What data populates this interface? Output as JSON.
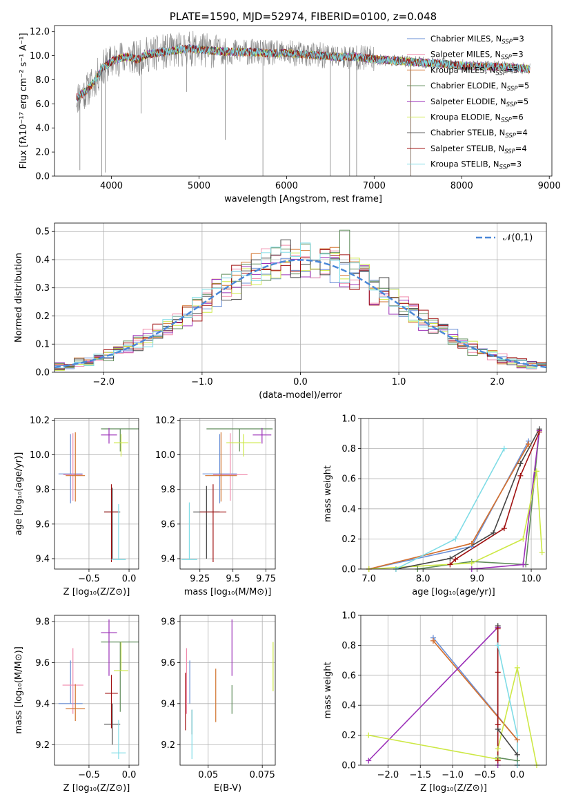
{
  "chart_data": [
    {
      "type": "line",
      "title": "PLATE=1590, MJD=52974, FIBERID=0100, z=0.048",
      "xlabel": "wavelength [Angstrom, rest frame]",
      "ylabel": "Flux [fλ10⁻¹⁷ erg cm⁻² s⁻¹ A⁻¹]",
      "xlim": [
        3350,
        9030
      ],
      "ylim": [
        0,
        12.5
      ],
      "xticks": [
        4000,
        5000,
        6000,
        7000,
        8000,
        9000
      ],
      "yticks": [
        0,
        2,
        4,
        6,
        8,
        10,
        12
      ],
      "legend_position": "right",
      "grid": false,
      "data_series": {
        "name": "",
        "color": "#808080",
        "x_range": [
          3600,
          8780
        ]
      },
      "series": [
        {
          "name": "Chabrier MILES",
          "nssp": "3",
          "color": "#6a8fd5"
        },
        {
          "name": "Salpeter MILES",
          "nssp": "3",
          "color": "#f08aac"
        },
        {
          "name": "Kroupa MILES",
          "nssp": "3",
          "color": "#d2732d"
        },
        {
          "name": "Chabrier ELODIE",
          "nssp": "5",
          "color": "#5f8c5a"
        },
        {
          "name": "Salpeter ELODIE",
          "nssp": "5",
          "color": "#9b30b8"
        },
        {
          "name": "Kroupa ELODIE",
          "nssp": "6",
          "color": "#cde845"
        },
        {
          "name": "Chabrier STELIB",
          "nssp": "4",
          "color": "#444444"
        },
        {
          "name": "Salpeter STELIB",
          "nssp": "4",
          "color": "#a01010"
        },
        {
          "name": "Kroupa STELIB",
          "nssp": "3",
          "color": "#7fdce6"
        }
      ],
      "continuum": {
        "x": [
          3600,
          3700,
          3800,
          3900,
          4000,
          4100,
          4200,
          4300,
          4400,
          4500,
          4600,
          4700,
          4800,
          4900,
          5000,
          5200,
          5400,
          5600,
          5800,
          6000,
          6200,
          6400,
          6600,
          6800,
          7000,
          7200,
          7400,
          7600,
          7800,
          8000,
          8200,
          8400,
          8600,
          8780
        ],
        "y": [
          6.5,
          7.0,
          7.8,
          9.0,
          9.5,
          9.8,
          9.9,
          9.7,
          10.1,
          10.2,
          10.3,
          10.4,
          10.5,
          10.6,
          10.5,
          10.4,
          10.3,
          10.3,
          10.2,
          10.2,
          10.1,
          10.0,
          9.9,
          9.9,
          9.7,
          9.6,
          9.5,
          9.4,
          9.3,
          9.2,
          9.1,
          9.1,
          9.0,
          8.9
        ]
      },
      "drops": [
        {
          "x": 3640,
          "y": 0.5
        },
        {
          "x": 3890,
          "y": 0
        },
        {
          "x": 3930,
          "y": 0.3
        },
        {
          "x": 4340,
          "y": 5.2
        },
        {
          "x": 4860,
          "y": 7.0
        },
        {
          "x": 5300,
          "y": 3.0
        },
        {
          "x": 5730,
          "y": 0
        },
        {
          "x": 6500,
          "y": 0
        },
        {
          "x": 6720,
          "y": 0
        },
        {
          "x": 6800,
          "y": 0
        },
        {
          "x": 7420,
          "y": 0
        }
      ]
    },
    {
      "type": "bar",
      "xlabel": "(data-model)/error",
      "ylabel": "Normed distribution",
      "xlim": [
        -2.5,
        2.5
      ],
      "ylim": [
        0,
        0.53
      ],
      "xticks": [
        -2,
        -1,
        0,
        1,
        2
      ],
      "yticks": [
        0.0,
        0.1,
        0.2,
        0.3,
        0.4,
        0.5
      ],
      "grid": true,
      "histogram_bin_width": 0.1,
      "histogram_bin_range": [
        -2.5,
        2.5
      ],
      "legend_entries": [
        "𝒩(0,1)"
      ],
      "reference_curve": {
        "name": "𝒩(0,1)",
        "type": "normal",
        "mean": 0,
        "sd": 1,
        "color": "#4a88d8"
      },
      "series_colors": [
        "#6a8fd5",
        "#f08aac",
        "#d2732d",
        "#5f8c5a",
        "#9b30b8",
        "#cde845",
        "#444444",
        "#a01010",
        "#7fdce6"
      ],
      "noted_peaks": [
        {
          "x": -0.2,
          "y": 0.47
        },
        {
          "x": 0.2,
          "y": 0.465
        },
        {
          "x": 0.45,
          "y": 0.505
        }
      ]
    },
    {
      "type": "scatter",
      "xlabel": "Z [log₁₀(Z/Z⊙)]",
      "ylabel": "age  [log₁₀(age/yr)]",
      "xlim": [
        -0.93,
        0.12
      ],
      "ylim": [
        9.34,
        10.21
      ],
      "xticks": [
        -0.5,
        0.0
      ],
      "yticks": [
        9.4,
        9.6,
        9.8,
        10.0,
        10.2
      ],
      "grid": true,
      "points": [
        {
          "x": -0.73,
          "y": 9.89,
          "xerr": 0.15,
          "yerr": [
            0.17,
            0.23
          ],
          "color": "#6a8fd5"
        },
        {
          "x": -0.7,
          "y": 9.885,
          "xerr": 0.12,
          "yerr": [
            0.15,
            0.24
          ],
          "color": "#f08aac"
        },
        {
          "x": -0.67,
          "y": 9.88,
          "xerr": 0.12,
          "yerr": [
            0.15,
            0.25
          ],
          "color": "#d2732d"
        },
        {
          "x": -0.11,
          "y": 10.15,
          "xerr": 0.24,
          "yerr": [
            0.13,
            0.0
          ],
          "color": "#5f8c5a"
        },
        {
          "x": -0.25,
          "y": 10.115,
          "xerr": 0.1,
          "yerr": [
            0.05,
            0.04
          ],
          "color": "#9b30b8"
        },
        {
          "x": -0.1,
          "y": 10.07,
          "xerr": 0.09,
          "yerr": [
            0.08,
            0.05
          ],
          "color": "#cde845"
        },
        {
          "x": -0.21,
          "y": 9.67,
          "xerr": 0.1,
          "yerr": [
            0.27,
            0.14
          ],
          "color": "#444444"
        },
        {
          "x": -0.22,
          "y": 9.67,
          "xerr": 0.09,
          "yerr": [
            0.29,
            0.16
          ],
          "color": "#a01010"
        },
        {
          "x": -0.13,
          "y": 9.395,
          "xerr": 0.09,
          "yerr": [
            0.0,
            0.32
          ],
          "color": "#7fdce6"
        }
      ]
    },
    {
      "type": "scatter",
      "xlabel": "mass [log₁₀(M/M⊙)]",
      "ylabel": "",
      "xlim": [
        9.1,
        9.82
      ],
      "ylim": [
        9.34,
        10.21
      ],
      "xticks": [
        9.25,
        9.5,
        9.75
      ],
      "yticks": [
        9.4,
        9.6,
        9.8,
        10.0,
        10.2
      ],
      "grid": true,
      "points": [
        {
          "x": 9.4,
          "y": 9.89,
          "xerr": 0.13,
          "yerr": [
            0.17,
            0.23
          ],
          "color": "#6a8fd5"
        },
        {
          "x": 9.48,
          "y": 9.885,
          "xerr": 0.13,
          "yerr": [
            0.15,
            0.24
          ],
          "color": "#f08aac"
        },
        {
          "x": 9.41,
          "y": 9.88,
          "xerr": 0.12,
          "yerr": [
            0.15,
            0.25
          ],
          "color": "#d2732d"
        },
        {
          "x": 9.55,
          "y": 10.15,
          "xerr": 0.25,
          "yerr": [
            0.13,
            0.0
          ],
          "color": "#5f8c5a"
        },
        {
          "x": 9.72,
          "y": 10.115,
          "xerr": 0.07,
          "yerr": [
            0.05,
            0.04
          ],
          "color": "#9b30b8"
        },
        {
          "x": 9.58,
          "y": 10.07,
          "xerr": 0.13,
          "yerr": [
            0.08,
            0.05
          ],
          "color": "#cde845"
        },
        {
          "x": 9.3,
          "y": 9.67,
          "xerr": 0.1,
          "yerr": [
            0.27,
            0.15
          ],
          "color": "#444444"
        },
        {
          "x": 9.35,
          "y": 9.67,
          "xerr": 0.1,
          "yerr": [
            0.29,
            0.16
          ],
          "color": "#a01010"
        },
        {
          "x": 9.17,
          "y": 9.395,
          "xerr": 0.06,
          "yerr": [
            0.0,
            0.33
          ],
          "color": "#7fdce6"
        }
      ]
    },
    {
      "type": "line",
      "xlabel": "age  [log₁₀(age/yr)]",
      "ylabel": "mass weight",
      "xlim": [
        6.85,
        10.28
      ],
      "ylim": [
        0,
        1.0
      ],
      "xticks": [
        7,
        8,
        9,
        10
      ],
      "yticks": [
        0.0,
        0.2,
        0.4,
        0.6,
        0.8,
        1.0
      ],
      "grid": true,
      "series": [
        {
          "color": "#6a8fd5",
          "x": [
            7.0,
            8.9,
            9.95
          ],
          "y": [
            0.0,
            0.15,
            0.85
          ]
        },
        {
          "color": "#f08aac",
          "x": [
            7.0,
            8.9,
            9.95
          ],
          "y": [
            0.0,
            0.17,
            0.83
          ]
        },
        {
          "color": "#d2732d",
          "x": [
            7.0,
            8.9,
            9.95
          ],
          "y": [
            0.0,
            0.17,
            0.83
          ]
        },
        {
          "color": "#5f8c5a",
          "x": [
            7.9,
            8.9,
            9.9,
            10.15
          ],
          "y": [
            0.0,
            0.05,
            0.03,
            0.92
          ]
        },
        {
          "color": "#9b30b8",
          "x": [
            8.9,
            9.85,
            10.15
          ],
          "y": [
            0.0,
            0.03,
            0.92
          ]
        },
        {
          "color": "#cde845",
          "x": [
            7.0,
            8.9,
            9.85,
            10.1,
            10.2
          ],
          "y": [
            0.0,
            0.04,
            0.2,
            0.65,
            0.11
          ]
        },
        {
          "color": "#444444",
          "x": [
            7.5,
            8.5,
            9.3,
            9.8,
            10.15
          ],
          "y": [
            0.0,
            0.07,
            0.24,
            0.7,
            0.93
          ]
        },
        {
          "color": "#a01010",
          "x": [
            8.5,
            8.6,
            9.5,
            9.8,
            10.15
          ],
          "y": [
            0.03,
            0.065,
            0.27,
            0.62,
            0.91
          ]
        },
        {
          "color": "#7fdce6",
          "x": [
            7.5,
            8.6,
            9.5
          ],
          "y": [
            0.0,
            0.2,
            0.8
          ]
        }
      ]
    },
    {
      "type": "scatter",
      "xlabel": "Z [log₁₀(Z/Z⊙)]",
      "ylabel": "mass [log₁₀(M/M⊙)]",
      "xlim": [
        -0.93,
        0.12
      ],
      "ylim": [
        9.1,
        9.83
      ],
      "xticks": [
        -0.5,
        0.0
      ],
      "yticks": [
        9.2,
        9.4,
        9.6,
        9.8
      ],
      "grid": true,
      "points": [
        {
          "x": -0.73,
          "y": 9.4,
          "xerr": 0.15,
          "yerr": [
            0.0,
            0.21
          ],
          "color": "#6a8fd5"
        },
        {
          "x": -0.7,
          "y": 9.49,
          "xerr": 0.13,
          "yerr": [
            0.14,
            0.18
          ],
          "color": "#f08aac"
        },
        {
          "x": -0.67,
          "y": 9.375,
          "xerr": 0.12,
          "yerr": [
            0.06,
            0.12
          ],
          "color": "#d2732d"
        },
        {
          "x": -0.11,
          "y": 9.7,
          "xerr": 0.24,
          "yerr": [
            0.34,
            0.0
          ],
          "color": "#5f8c5a"
        },
        {
          "x": -0.25,
          "y": 9.745,
          "xerr": 0.1,
          "yerr": [
            0.21,
            0.065
          ],
          "color": "#9b30b8"
        },
        {
          "x": -0.1,
          "y": 9.56,
          "xerr": 0.09,
          "yerr": [
            0.0,
            0.14
          ],
          "color": "#cde845"
        },
        {
          "x": -0.21,
          "y": 9.3,
          "xerr": 0.1,
          "yerr": [
            0.1,
            0.1
          ],
          "color": "#444444"
        },
        {
          "x": -0.22,
          "y": 9.45,
          "xerr": 0.08,
          "yerr": [
            0.17,
            0.09
          ],
          "color": "#a01010"
        },
        {
          "x": -0.13,
          "y": 9.16,
          "xerr": 0.09,
          "yerr": [
            0.03,
            0.16
          ],
          "color": "#7fdce6"
        }
      ]
    },
    {
      "type": "scatter",
      "xlabel": "E(B-V)",
      "ylabel": "",
      "xlim": [
        0.037,
        0.081
      ],
      "ylim": [
        9.1,
        9.83
      ],
      "xticks": [
        0.05,
        0.075
      ],
      "yticks": [
        9.2,
        9.4,
        9.6,
        9.8
      ],
      "grid": true,
      "points": [
        {
          "x": 0.0415,
          "y": 9.4,
          "yerr": [
            0.0,
            0.21
          ],
          "color": "#6a8fd5"
        },
        {
          "x": 0.04,
          "y": 9.49,
          "yerr": [
            0.14,
            0.18
          ],
          "color": "#f08aac"
        },
        {
          "x": 0.0535,
          "y": 9.44,
          "yerr": [
            0.13,
            0.13
          ],
          "color": "#d2732d"
        },
        {
          "x": 0.061,
          "y": 9.49,
          "yerr": [
            0.14,
            0.0
          ],
          "color": "#5f8c5a"
        },
        {
          "x": 0.061,
          "y": 9.745,
          "yerr": [
            0.21,
            0.065
          ],
          "color": "#9b30b8"
        },
        {
          "x": 0.08,
          "y": 9.58,
          "yerr": [
            0.12,
            0.12
          ],
          "color": "#cde845"
        },
        {
          "x": 0.0425,
          "y": 9.31,
          "yerr": [
            0.06,
            0.06
          ],
          "color": "#444444"
        },
        {
          "x": 0.0395,
          "y": 9.41,
          "yerr": [
            0.14,
            0.14
          ],
          "color": "#a01010"
        },
        {
          "x": 0.0425,
          "y": 9.16,
          "yerr": [
            0.03,
            0.21
          ],
          "color": "#7fdce6"
        }
      ]
    },
    {
      "type": "line",
      "xlabel": "Z [log₁₀(Z/Z⊙)]",
      "ylabel": "mass weight",
      "xlim": [
        -2.42,
        0.45
      ],
      "ylim": [
        0,
        1.0
      ],
      "xticks": [
        -2.0,
        -1.5,
        -1.0,
        -0.5,
        0.0
      ],
      "yticks": [
        0.0,
        0.2,
        0.4,
        0.6,
        0.8,
        1.0
      ],
      "grid": true,
      "series": [
        {
          "color": "#6a8fd5",
          "x": [
            -1.3,
            0.0,
            0.0
          ],
          "y": [
            0.85,
            0.17,
            0.0
          ]
        },
        {
          "color": "#f08aac",
          "x": [
            -1.3,
            0.0,
            0.0
          ],
          "y": [
            0.83,
            0.17,
            0.0
          ]
        },
        {
          "color": "#d2732d",
          "x": [
            -1.3,
            0.0,
            0.0
          ],
          "y": [
            0.83,
            0.17,
            0.0
          ]
        },
        {
          "color": "#5f8c5a",
          "x": [
            -0.3,
            -0.3,
            0.0
          ],
          "y": [
            0.92,
            0.05,
            0.03
          ]
        },
        {
          "color": "#9b30b8",
          "x": [
            -2.3,
            -0.3,
            -0.3
          ],
          "y": [
            0.03,
            0.92,
            0.0
          ]
        },
        {
          "color": "#cde845",
          "x": [
            -2.3,
            -0.3,
            -0.3,
            0.0,
            0.3
          ],
          "y": [
            0.2,
            0.04,
            0.11,
            0.65,
            0.0
          ]
        },
        {
          "color": "#444444",
          "x": [
            -0.3,
            -0.3,
            0.0,
            0.0
          ],
          "y": [
            0.93,
            0.24,
            0.07,
            0.0
          ]
        },
        {
          "color": "#a01010",
          "x": [
            -0.3,
            -0.3,
            -0.3,
            -0.3
          ],
          "y": [
            0.91,
            0.62,
            0.27,
            0.03
          ]
        },
        {
          "color": "#7fdce6",
          "x": [
            -0.3,
            0.0,
            0.0
          ],
          "y": [
            0.8,
            0.2,
            0.0
          ]
        }
      ]
    }
  ]
}
